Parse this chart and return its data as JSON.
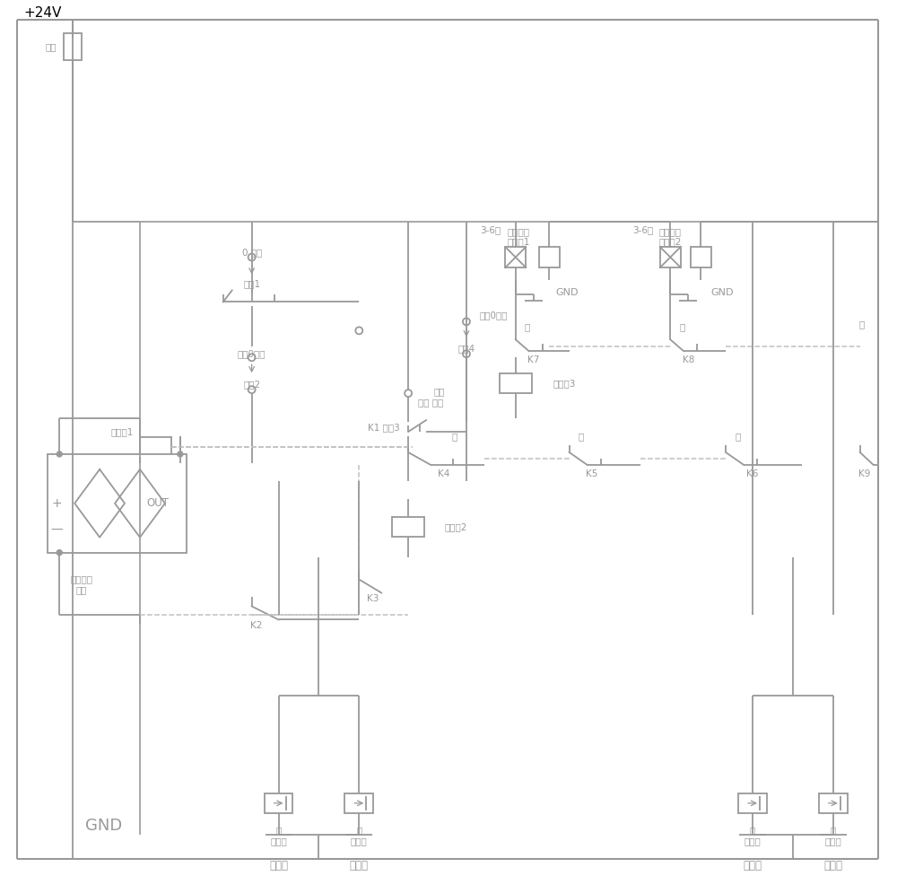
{
  "lc": "#999999",
  "dc": "#c0c0c0",
  "tc": "#999999",
  "figsize": [
    10.0,
    9.76
  ],
  "dpi": 100,
  "labels": {
    "voltage": "+24V",
    "fuse": "保险",
    "relay1": "继电器1",
    "relay2": "继电器2",
    "relay3": "继电器3",
    "timer1_line1": "延时接通",
    "timer1_line2": "继电器1",
    "timer2_line1": "延时接通",
    "timer2_line2": "继电器2",
    "sw1_top": "0 起振",
    "sw1": "开兴1",
    "sw2_top": "手动0自动",
    "sw2": "开兴2",
    "sw3_top1": "双振",
    "sw3_top2": "前振 后振",
    "sw3": "K1 开兴3",
    "sw4_top": "小振0大振",
    "sw4": "开兴4",
    "time1": "3-6秒",
    "time2": "3-6秒",
    "K2": "K2",
    "K3": "K3",
    "K4": "K4",
    "K5": "K5",
    "K6": "K6",
    "K7": "K7",
    "K8": "K8",
    "K9": "K9",
    "OUT": "OUT",
    "center_sw_1": "行走中位",
    "center_sw_2": "开关",
    "GND": "GND",
    "left": "左",
    "right": "右",
    "ben": "本",
    "xzf": "小振阀",
    "dzf": "大振阀",
    "hzf": "后振阀",
    "qzf": "前振阀",
    "plus": "+",
    "minus": "—"
  }
}
